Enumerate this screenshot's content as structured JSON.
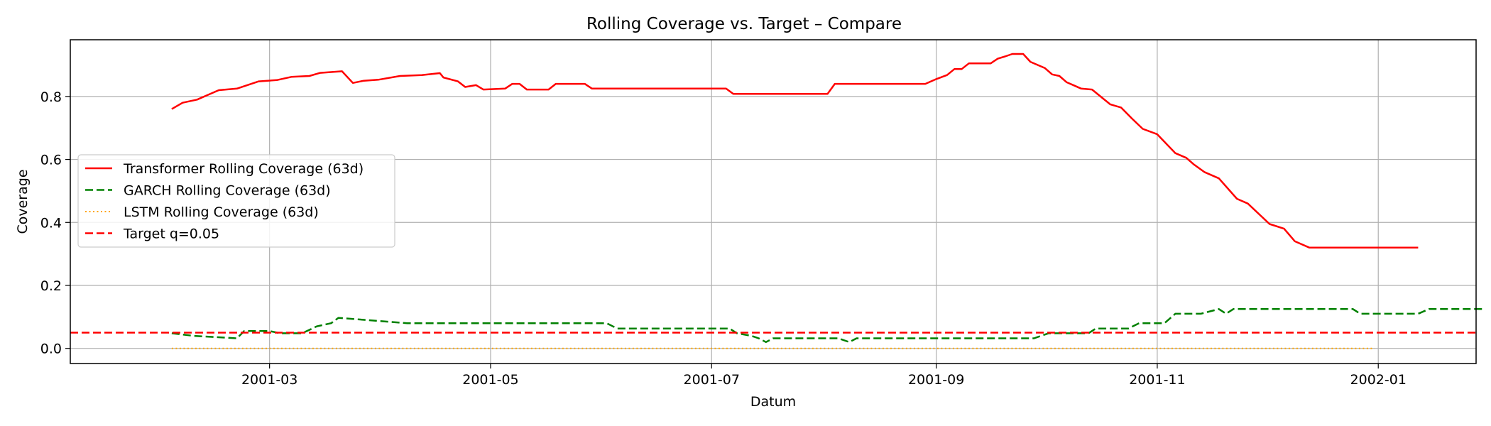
{
  "chart_data": {
    "type": "line",
    "title": "Rolling Coverage vs. Target – Compare",
    "xlabel": "Datum",
    "ylabel": "Coverage",
    "xlim": [
      "2001-01-05",
      "2002-01-28"
    ],
    "ylim": [
      -0.048,
      0.98
    ],
    "x_ticks": [
      "2001-03-01",
      "2001-05-01",
      "2001-07-01",
      "2001-09-01",
      "2001-11-01",
      "2002-01-01"
    ],
    "x_tick_labels": [
      "2001-03",
      "2001-05",
      "2001-07",
      "2001-09",
      "2001-11",
      "2002-01"
    ],
    "y_ticks": [
      0.0,
      0.2,
      0.4,
      0.6,
      0.8
    ],
    "y_tick_labels": [
      "0.0",
      "0.2",
      "0.4",
      "0.6",
      "0.8"
    ],
    "grid": true,
    "legend_position": "center-left",
    "series": [
      {
        "name": "Transformer Rolling Coverage (63d)",
        "color": "#ff0000",
        "style": "solid",
        "points": [
          [
            "2001-02-02",
            0.76
          ],
          [
            "2001-02-05",
            0.78
          ],
          [
            "2001-02-09",
            0.79
          ],
          [
            "2001-02-12",
            0.805
          ],
          [
            "2001-02-15",
            0.82
          ],
          [
            "2001-02-20",
            0.825
          ],
          [
            "2001-02-26",
            0.848
          ],
          [
            "2001-03-03",
            0.852
          ],
          [
            "2001-03-07",
            0.862
          ],
          [
            "2001-03-12",
            0.865
          ],
          [
            "2001-03-15",
            0.875
          ],
          [
            "2001-03-21",
            0.88
          ],
          [
            "2001-03-24",
            0.843
          ],
          [
            "2001-03-27",
            0.85
          ],
          [
            "2001-03-31",
            0.853
          ],
          [
            "2001-04-06",
            0.865
          ],
          [
            "2001-04-12",
            0.868
          ],
          [
            "2001-04-17",
            0.874
          ],
          [
            "2001-04-18",
            0.86
          ],
          [
            "2001-04-22",
            0.848
          ],
          [
            "2001-04-24",
            0.83
          ],
          [
            "2001-04-27",
            0.836
          ],
          [
            "2001-04-29",
            0.822
          ],
          [
            "2001-05-05",
            0.825
          ],
          [
            "2001-05-07",
            0.84
          ],
          [
            "2001-05-09",
            0.84
          ],
          [
            "2001-05-11",
            0.822
          ],
          [
            "2001-05-17",
            0.822
          ],
          [
            "2001-05-19",
            0.84
          ],
          [
            "2001-05-27",
            0.84
          ],
          [
            "2001-05-29",
            0.825
          ],
          [
            "2001-07-05",
            0.825
          ],
          [
            "2001-07-07",
            0.808
          ],
          [
            "2001-08-02",
            0.808
          ],
          [
            "2001-08-04",
            0.84
          ],
          [
            "2001-08-29",
            0.84
          ],
          [
            "2001-09-01",
            0.855
          ],
          [
            "2001-09-04",
            0.868
          ],
          [
            "2001-09-06",
            0.887
          ],
          [
            "2001-09-08",
            0.887
          ],
          [
            "2001-09-10",
            0.905
          ],
          [
            "2001-09-16",
            0.905
          ],
          [
            "2001-09-18",
            0.92
          ],
          [
            "2001-09-20",
            0.927
          ],
          [
            "2001-09-22",
            0.935
          ],
          [
            "2001-09-25",
            0.935
          ],
          [
            "2001-09-27",
            0.91
          ],
          [
            "2001-09-29",
            0.9
          ],
          [
            "2001-10-01",
            0.89
          ],
          [
            "2001-10-03",
            0.87
          ],
          [
            "2001-10-05",
            0.865
          ],
          [
            "2001-10-07",
            0.845
          ],
          [
            "2001-10-09",
            0.835
          ],
          [
            "2001-10-11",
            0.825
          ],
          [
            "2001-10-14",
            0.822
          ],
          [
            "2001-10-19",
            0.775
          ],
          [
            "2001-10-22",
            0.765
          ],
          [
            "2001-10-25",
            0.73
          ],
          [
            "2001-10-28",
            0.697
          ],
          [
            "2001-11-01",
            0.68
          ],
          [
            "2001-11-06",
            0.62
          ],
          [
            "2001-11-09",
            0.605
          ],
          [
            "2001-11-11",
            0.585
          ],
          [
            "2001-11-14",
            0.56
          ],
          [
            "2001-11-18",
            0.54
          ],
          [
            "2001-11-23",
            0.475
          ],
          [
            "2001-11-26",
            0.46
          ],
          [
            "2001-12-02",
            0.395
          ],
          [
            "2001-12-06",
            0.38
          ],
          [
            "2001-12-09",
            0.34
          ],
          [
            "2001-12-13",
            0.32
          ],
          [
            "2001-12-28",
            0.32
          ],
          [
            "2002-01-10",
            0.32
          ],
          [
            "2002-01-12",
            0.32
          ],
          [
            "2001-12-31",
            0.32
          ],
          [
            "2002-01-04",
            0.32
          ]
        ]
      },
      {
        "name": "GARCH Rolling Coverage (63d)",
        "color": "#008000",
        "style": "dashed",
        "points": [
          [
            "2001-02-02",
            0.048
          ],
          [
            "2001-02-08",
            0.04
          ],
          [
            "2001-02-20",
            0.032
          ],
          [
            "2001-02-22",
            0.055
          ],
          [
            "2001-03-01",
            0.055
          ],
          [
            "2001-03-04",
            0.048
          ],
          [
            "2001-03-10",
            0.048
          ],
          [
            "2001-03-14",
            0.07
          ],
          [
            "2001-03-18",
            0.08
          ],
          [
            "2001-03-20",
            0.097
          ],
          [
            "2001-03-28",
            0.09
          ],
          [
            "2001-04-08",
            0.08
          ],
          [
            "2001-06-02",
            0.08
          ],
          [
            "2001-06-05",
            0.063
          ],
          [
            "2001-07-06",
            0.063
          ],
          [
            "2001-07-08",
            0.048
          ],
          [
            "2001-07-12",
            0.04
          ],
          [
            "2001-07-14",
            0.032
          ],
          [
            "2001-07-16",
            0.02
          ],
          [
            "2001-07-18",
            0.032
          ],
          [
            "2001-08-05",
            0.032
          ],
          [
            "2001-08-08",
            0.02
          ],
          [
            "2001-08-10",
            0.032
          ],
          [
            "2001-09-28",
            0.032
          ],
          [
            "2001-10-02",
            0.048
          ],
          [
            "2001-10-13",
            0.048
          ],
          [
            "2001-10-15",
            0.063
          ],
          [
            "2001-10-24",
            0.063
          ],
          [
            "2001-10-27",
            0.08
          ],
          [
            "2001-11-03",
            0.08
          ],
          [
            "2001-11-06",
            0.11
          ],
          [
            "2001-11-13",
            0.11
          ],
          [
            "2001-11-18",
            0.125
          ],
          [
            "2001-11-20",
            0.11
          ],
          [
            "2001-11-22",
            0.125
          ],
          [
            "2001-12-25",
            0.125
          ],
          [
            "2001-12-27",
            0.11
          ],
          [
            "2002-01-12",
            0.11
          ],
          [
            "2002-01-15",
            0.125
          ],
          [
            "2002-01-30",
            0.125
          ]
        ]
      },
      {
        "name": "LSTM Rolling Coverage (63d)",
        "color": "#ffa500",
        "style": "dotted",
        "points": [
          [
            "2001-02-02",
            0.0
          ],
          [
            "2001-12-31",
            0.0
          ]
        ]
      },
      {
        "name": "Target q=0.05",
        "color": "#ff0000",
        "style": "dashed",
        "points": [
          [
            "2001-01-05",
            0.05
          ],
          [
            "2002-01-28",
            0.05
          ]
        ]
      }
    ]
  }
}
